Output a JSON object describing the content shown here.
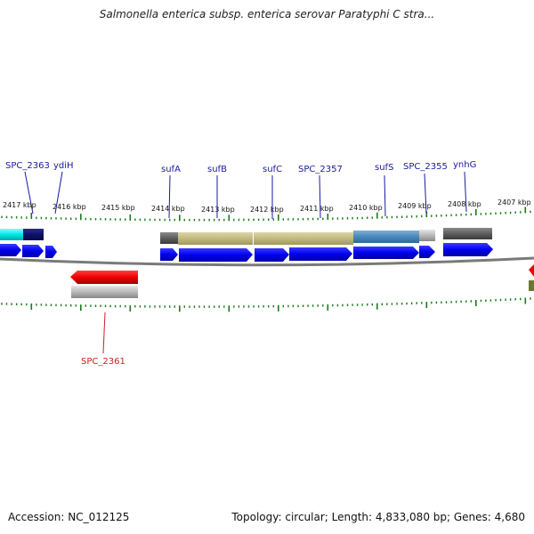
{
  "title": "Salmonella enterica subsp. enterica serovar Paratyphi C stra...",
  "footer": {
    "accession": "Accession: NC_012125",
    "topology": "Topology: circular; Length: 4,833,080 bp; Genes: 4,680"
  },
  "scale_labels": [
    "2417 kbp",
    "2416 kbp",
    "2415 kbp",
    "2414 kbp",
    "2413 kbp",
    "2412 kbp",
    "2411 kbp",
    "2410 kbp",
    "2409 kbp",
    "2408 kbp",
    "2407 kbp"
  ],
  "gene_labels": [
    "SPC_2363",
    "ydiH",
    "sufA",
    "sufB",
    "sufC",
    "SPC_2357",
    "sufS",
    "SPC_2355",
    "ynhG"
  ],
  "reverse_gene_labels": [
    "SPC_2361"
  ],
  "colors": {
    "forward_cds": "#0000ee",
    "reverse_cds": "#ee0000",
    "backbone": "#888888",
    "tick": "#1a7a1a",
    "label_blue": "#1a1aa0",
    "label_red": "#cc2222"
  }
}
